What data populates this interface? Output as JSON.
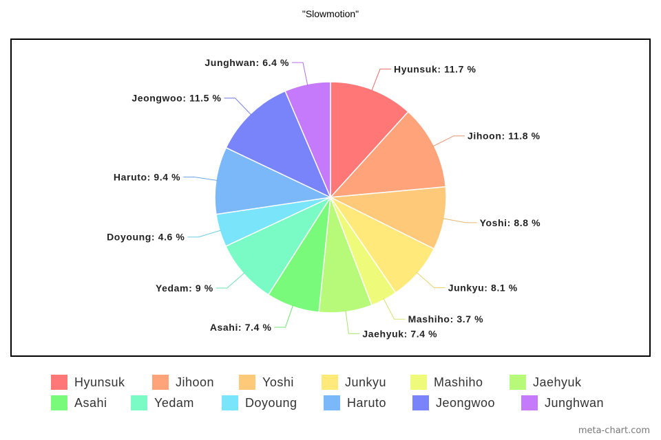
{
  "chart_data": {
    "type": "pie",
    "title": "\"Slowmotion\"",
    "slices": [
      {
        "label": "Hyunsuk",
        "value": 11.7,
        "display": "Hyunsuk: 11.7 %",
        "color": "#ff7777"
      },
      {
        "label": "Jihoon",
        "value": 11.8,
        "display": "Jihoon: 11.8 %",
        "color": "#ffa37a"
      },
      {
        "label": "Yoshi",
        "value": 8.8,
        "display": "Yoshi: 8.8 %",
        "color": "#ffc97a"
      },
      {
        "label": "Junkyu",
        "value": 8.1,
        "display": "Junkyu: 8.1 %",
        "color": "#ffe97a"
      },
      {
        "label": "Mashiho",
        "value": 3.7,
        "display": "Mashiho: 3.7 %",
        "color": "#eefa7a"
      },
      {
        "label": "Jaehyuk",
        "value": 7.4,
        "display": "Jaehyuk: 7.4 %",
        "color": "#b7fa7a"
      },
      {
        "label": "Asahi",
        "value": 7.4,
        "display": "Asahi: 7.4 %",
        "color": "#7afa7a"
      },
      {
        "label": "Yedam",
        "value": 9.0,
        "display": "Yedam: 9 %",
        "color": "#7afac4"
      },
      {
        "label": "Doyoung",
        "value": 4.6,
        "display": "Doyoung: 4.6 %",
        "color": "#7ae4fa"
      },
      {
        "label": "Haruto",
        "value": 9.4,
        "display": "Haruto: 9.4 %",
        "color": "#7ab8fa"
      },
      {
        "label": "Jeongwoo",
        "value": 11.5,
        "display": "Jeongwoo: 11.5 %",
        "color": "#7a84fa"
      },
      {
        "label": "Junghwan",
        "value": 6.4,
        "display": "Junghwan: 6.4 %",
        "color": "#c47afa"
      }
    ],
    "legend_placement": "bottom"
  },
  "watermark": "meta-chart.com"
}
